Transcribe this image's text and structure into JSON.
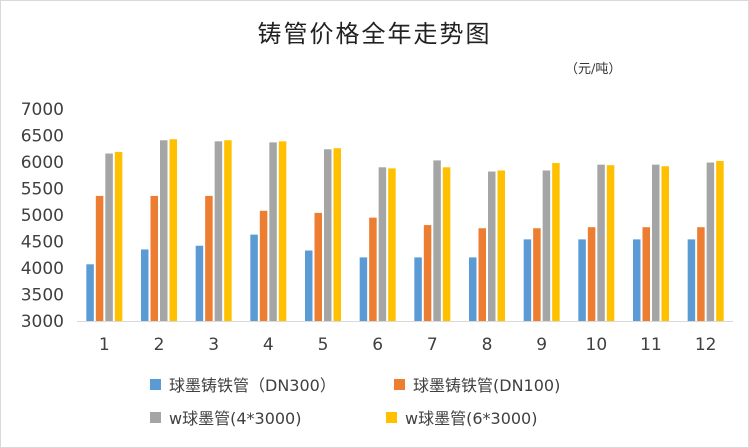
{
  "chart_data": {
    "type": "bar",
    "title": "铸管价格全年走势图",
    "unit": "（元/吨）",
    "xlabel": "",
    "ylabel": "",
    "ylim": [
      3000,
      7000
    ],
    "yticks": [
      3000,
      3500,
      4000,
      4500,
      5000,
      5500,
      6000,
      6500,
      7000
    ],
    "grid": false,
    "legend_position": "bottom",
    "categories": [
      "1",
      "2",
      "3",
      "4",
      "5",
      "6",
      "7",
      "8",
      "9",
      "10",
      "11",
      "12"
    ],
    "series": [
      {
        "name": "球墨铸铁管（DN300）",
        "color": "#5b9bd5",
        "values": [
          4070,
          4350,
          4420,
          4630,
          4330,
          4200,
          4200,
          4200,
          4540,
          4540,
          4540,
          4540
        ]
      },
      {
        "name": "球墨铸铁管(DN100)",
        "color": "#ed7d31",
        "values": [
          5360,
          5360,
          5360,
          5080,
          5040,
          4950,
          4810,
          4750,
          4750,
          4770,
          4770,
          4770
        ]
      },
      {
        "name": "w球墨管(4*3000)",
        "color": "#a5a5a5",
        "values": [
          6160,
          6410,
          6390,
          6370,
          6240,
          5900,
          6030,
          5820,
          5840,
          5950,
          5950,
          5990
        ]
      },
      {
        "name": "w球墨管(6*3000)",
        "color": "#ffc000",
        "values": [
          6190,
          6430,
          6410,
          6390,
          6260,
          5880,
          5900,
          5840,
          5980,
          5940,
          5920,
          6020
        ]
      }
    ]
  }
}
